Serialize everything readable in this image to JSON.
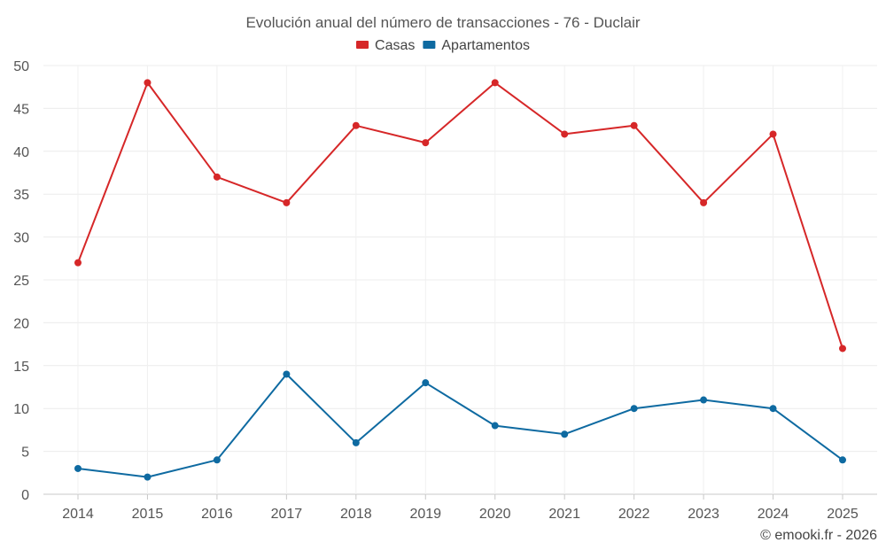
{
  "chart_data": {
    "type": "line",
    "title": "Evolución anual del número de transacciones - 76 - Duclair",
    "xlabel": "",
    "ylabel": "",
    "categories": [
      "2014",
      "2015",
      "2016",
      "2017",
      "2018",
      "2019",
      "2020",
      "2021",
      "2022",
      "2023",
      "2024",
      "2025"
    ],
    "ylim": [
      0,
      50
    ],
    "yticks": [
      0,
      5,
      10,
      15,
      20,
      25,
      30,
      35,
      40,
      45,
      50
    ],
    "grid": true,
    "legend_position": "top-center",
    "series": [
      {
        "name": "Casas",
        "color": "#d62728",
        "values": [
          27,
          48,
          37,
          34,
          43,
          41,
          48,
          42,
          43,
          34,
          42,
          17
        ]
      },
      {
        "name": "Apartamentos",
        "color": "#0e6aa1",
        "values": [
          3,
          2,
          4,
          14,
          6,
          13,
          8,
          7,
          10,
          11,
          10,
          4
        ]
      }
    ],
    "credit": "© emooki.fr - 2026"
  }
}
